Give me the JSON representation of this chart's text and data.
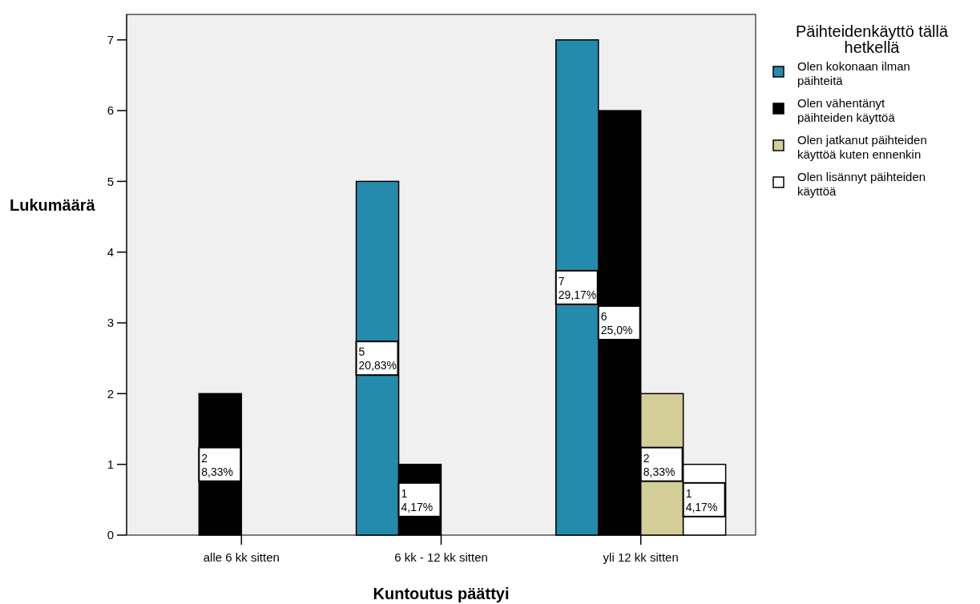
{
  "chart_data": {
    "type": "bar",
    "xlabel": "Kuntoutus päättyi",
    "ylabel": "Lukumäärä",
    "legend_title": "Päihteidenkäyttö tällä hetkellä",
    "categories": [
      "alle 6 kk sitten",
      "6 kk - 12 kk sitten",
      "yli 12 kk sitten"
    ],
    "series": [
      {
        "name": "Olen kokonaan ilman päihteitä",
        "color": "#248bac",
        "values": [
          null,
          5,
          7
        ],
        "value_labels": [
          null,
          "5\n20,83%",
          "7\n29,17%"
        ]
      },
      {
        "name": "Olen vähentänyt päihteiden käyttöä",
        "color": "#000000",
        "values": [
          2,
          1,
          6
        ],
        "value_labels": [
          "2\n8,33%",
          "1\n4,17%",
          "6\n25,0%"
        ]
      },
      {
        "name": "Olen jatkanut päihteiden käyttöä kuten ennenkin",
        "color": "#d3ce97",
        "values": [
          null,
          null,
          2
        ],
        "value_labels": [
          null,
          null,
          "2\n8,33%"
        ]
      },
      {
        "name": "Olen lisännyt päihteiden käyttöä",
        "color": "#ffffff",
        "values": [
          null,
          null,
          1
        ],
        "value_labels": [
          null,
          null,
          "1\n4,17%"
        ]
      }
    ],
    "ylim": [
      0,
      7.36
    ],
    "yticks": [
      0,
      1,
      2,
      3,
      4,
      5,
      6,
      7
    ],
    "grid": false,
    "legend": "right"
  }
}
